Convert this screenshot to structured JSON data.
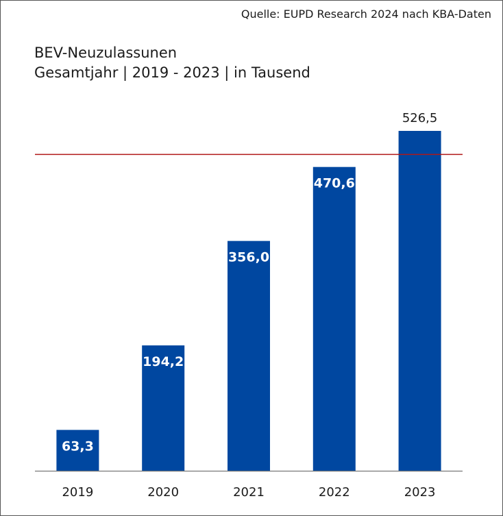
{
  "source": "Quelle: EUPD Research 2024 nach KBA-Daten",
  "title_line1": "BEV-Neuzulassunen",
  "title_line2": "Gesamtjahr | 2019 - 2023 | in Tausend",
  "chart_data": {
    "type": "bar",
    "title": "BEV-Neuzulassunen",
    "subtitle": "Gesamtjahr | 2019 - 2023 | in Tausend",
    "categories": [
      "2019",
      "2020",
      "2021",
      "2022",
      "2023"
    ],
    "values": [
      63.3,
      194.2,
      356.0,
      470.6,
      526.5
    ],
    "value_labels": [
      "63,3",
      "194,2",
      "356,0",
      "470,6",
      "526,5"
    ],
    "reference_line": 490,
    "ylim": [
      0,
      560
    ],
    "grid": false,
    "colors": {
      "bar": "#0047a0",
      "reference_line": "#b01818",
      "axis": "#777777",
      "label_inside": "#ffffff",
      "label_outside": "#1a1a1a"
    }
  }
}
